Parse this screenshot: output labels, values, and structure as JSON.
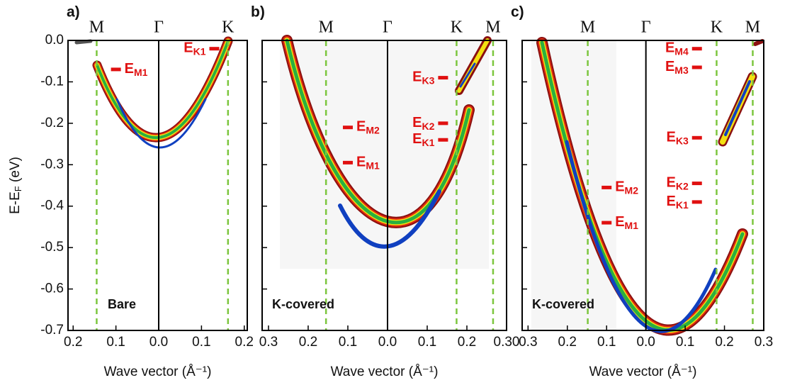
{
  "chart_data": [
    {
      "type": "band-map",
      "panel_label": "a)",
      "inner_label": "Bare",
      "xlabel": "Wave vector (Å⁻¹)",
      "ylabel": {
        "text": "E-E",
        "sub": "F",
        "suffix": " (eV)"
      },
      "xlim": [
        -0.212,
        0.207
      ],
      "ylim": [
        -0.7,
        0
      ],
      "xticks": [
        {
          "value": -0.2,
          "label": "0.2"
        },
        {
          "value": -0.1,
          "label": "0.1"
        },
        {
          "value": 0,
          "label": "0.0"
        },
        {
          "value": 0.1,
          "label": "0.1"
        },
        {
          "value": 0.2,
          "label": "0.2"
        }
      ],
      "yticks": [
        {
          "value": 0,
          "label": "0.0"
        },
        -0.1,
        -0.2,
        -0.3,
        -0.4,
        -0.5,
        -0.6,
        -0.7
      ],
      "symmetry_points": [
        {
          "value": -0.145,
          "label": "M"
        },
        {
          "value": 0,
          "label": "Γ"
        },
        {
          "value": 0.162,
          "label": "K"
        }
      ],
      "annotations": [
        {
          "text": "E",
          "sub": "M1",
          "x": -0.1,
          "y": -0.07
        },
        {
          "text": "E",
          "sub": "K1",
          "x": 0.13,
          "y": -0.02
        }
      ]
    },
    {
      "type": "band-map",
      "panel_label": "b)",
      "inner_label": "K-covered",
      "xlabel": "Wave vector (Å⁻¹)",
      "xlim": [
        -0.316,
        0.3
      ],
      "ylim": [
        -0.7,
        0
      ],
      "xticks": [
        {
          "value": -0.3,
          "label": "0.3"
        },
        {
          "value": -0.2,
          "label": "0.2"
        },
        {
          "value": -0.1,
          "label": "0.1"
        },
        {
          "value": 0,
          "label": "0.0"
        },
        {
          "value": 0.1,
          "label": "0.1"
        },
        {
          "value": 0.2,
          "label": "0.2"
        },
        {
          "value": 0.3,
          "label": "0.30"
        }
      ],
      "symmetry_points": [
        {
          "value": -0.155,
          "label": "M"
        },
        {
          "value": 0,
          "label": "Γ"
        },
        {
          "value": 0.174,
          "label": "K"
        },
        {
          "value": 0.266,
          "label": "M"
        }
      ],
      "annotations": [
        {
          "text": "E",
          "sub": "K3",
          "x": 0.14,
          "y": -0.09
        },
        {
          "text": "E",
          "sub": "M2",
          "x": -0.1,
          "y": -0.21
        },
        {
          "text": "E",
          "sub": "K2",
          "x": 0.14,
          "y": -0.2
        },
        {
          "text": "E",
          "sub": "K1",
          "x": 0.14,
          "y": -0.24
        },
        {
          "text": "E",
          "sub": "M1",
          "x": -0.1,
          "y": -0.295
        }
      ]
    },
    {
      "type": "band-map",
      "panel_label": "c)",
      "inner_label": "K-covered",
      "xlabel": "Wave vector (Å⁻¹)",
      "xlim": [
        -0.315,
        0.3
      ],
      "ylim": [
        -0.7,
        0
      ],
      "xticks": [
        {
          "value": -0.3,
          "label": "0.3"
        },
        {
          "value": -0.2,
          "label": "0.2"
        },
        {
          "value": -0.1,
          "label": "0.1"
        },
        {
          "value": 0,
          "label": "0.0"
        },
        {
          "value": 0.1,
          "label": "0.1"
        },
        {
          "value": 0.2,
          "label": "0.2"
        },
        {
          "value": 0.3,
          "label": "0.3"
        }
      ],
      "symmetry_points": [
        {
          "value": -0.148,
          "label": "M"
        },
        {
          "value": 0,
          "label": "Γ"
        },
        {
          "value": 0.18,
          "label": "K"
        },
        {
          "value": 0.272,
          "label": "M"
        }
      ],
      "annotations": [
        {
          "text": "E",
          "sub": "M4",
          "x": 0.13,
          "y": -0.02
        },
        {
          "text": "E",
          "sub": "M3",
          "x": 0.13,
          "y": -0.065
        },
        {
          "text": "E",
          "sub": "K3",
          "x": 0.13,
          "y": -0.235
        },
        {
          "text": "E",
          "sub": "K2",
          "x": 0.13,
          "y": -0.345
        },
        {
          "text": "E",
          "sub": "M2",
          "x": -0.1,
          "y": -0.355
        },
        {
          "text": "E",
          "sub": "K1",
          "x": 0.13,
          "y": -0.39
        },
        {
          "text": "E",
          "sub": "M1",
          "x": -0.1,
          "y": -0.44
        }
      ]
    }
  ]
}
